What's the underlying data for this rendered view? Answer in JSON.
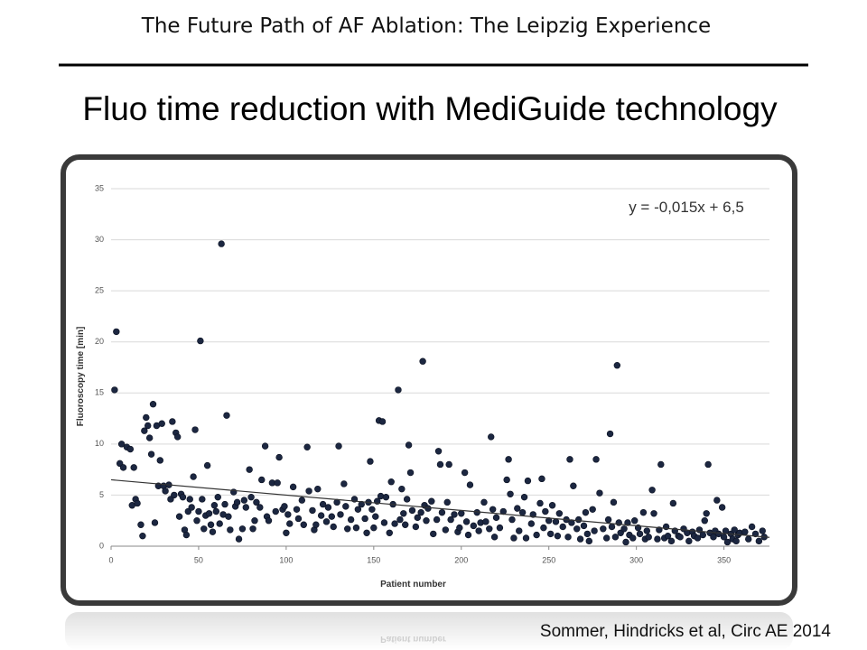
{
  "header": {
    "title": "The Future Path of AF Ablation: The Leipzig Experience"
  },
  "slide": {
    "heading": "Fluo time reduction with MediGuide technology",
    "citation": "Sommer, Hindricks et al, Circ AE 2014"
  },
  "chart_data": {
    "type": "scatter",
    "xlabel": "Patient number",
    "ylabel": "Fluoroscopy time [min]",
    "annotation": "y = -0,015x + 6,5",
    "color": "#1c2741",
    "grid": true,
    "trendline": {
      "slope": -0.015,
      "intercept": 6.5,
      "color": "#333333"
    },
    "xlim": [
      0,
      376
    ],
    "ylim": [
      0,
      35
    ],
    "xticks": [
      0,
      50,
      100,
      150,
      200,
      250,
      300,
      350
    ],
    "yticks": [
      0,
      5,
      10,
      15,
      20,
      25,
      30,
      35
    ],
    "x": [
      2,
      3,
      5,
      6,
      7,
      9,
      11,
      12,
      13,
      14,
      15,
      17,
      18,
      19,
      20,
      21,
      22,
      23,
      24,
      25,
      26,
      27,
      28,
      29,
      30,
      31,
      33,
      34,
      35,
      36,
      37,
      38,
      39,
      40,
      41,
      42,
      43,
      44,
      45,
      46,
      47,
      48,
      49,
      50,
      51,
      52,
      53,
      54,
      55,
      56,
      57,
      58,
      59,
      60,
      61,
      62,
      63,
      64,
      65,
      66,
      67,
      68,
      70,
      71,
      72,
      73,
      75,
      76,
      77,
      79,
      80,
      81,
      82,
      83,
      85,
      86,
      88,
      89,
      90,
      92,
      94,
      95,
      96,
      98,
      99,
      100,
      101,
      102,
      104,
      106,
      107,
      109,
      110,
      112,
      113,
      115,
      116,
      117,
      118,
      120,
      121,
      123,
      124,
      126,
      127,
      129,
      130,
      131,
      133,
      134,
      135,
      137,
      139,
      140,
      141,
      143,
      145,
      146,
      147,
      148,
      149,
      150,
      151,
      152,
      153,
      154,
      155,
      156,
      157,
      159,
      160,
      161,
      162,
      164,
      165,
      166,
      167,
      168,
      169,
      170,
      171,
      172,
      174,
      175,
      177,
      178,
      179,
      180,
      181,
      183,
      184,
      186,
      187,
      188,
      189,
      191,
      192,
      193,
      194,
      196,
      198,
      199,
      200,
      202,
      203,
      204,
      205,
      207,
      209,
      210,
      211,
      213,
      214,
      216,
      217,
      218,
      219,
      220,
      222,
      224,
      226,
      227,
      228,
      229,
      230,
      232,
      233,
      235,
      236,
      237,
      238,
      240,
      241,
      243,
      245,
      246,
      247,
      248,
      250,
      251,
      252,
      254,
      255,
      256,
      258,
      260,
      261,
      262,
      263,
      264,
      266,
      267,
      268,
      270,
      271,
      272,
      273,
      275,
      276,
      277,
      285,
      279,
      289,
      281,
      283,
      284,
      286,
      287,
      288,
      290,
      291,
      293,
      294,
      295,
      296,
      298,
      299,
      301,
      302,
      304,
      305,
      306,
      307,
      309,
      310,
      312,
      313,
      314,
      316,
      317,
      318,
      320,
      321,
      322,
      324,
      325,
      327,
      329,
      330,
      332,
      333,
      335,
      336,
      338,
      339,
      340,
      341,
      342,
      344,
      345,
      346,
      347,
      349,
      350,
      351,
      352,
      354,
      355,
      356,
      357,
      358,
      359,
      362,
      364,
      366,
      368,
      370,
      372,
      373
    ],
    "values": [
      15.3,
      21,
      8.1,
      10,
      7.7,
      9.7,
      9.5,
      4,
      7.7,
      4.6,
      4.2,
      2.1,
      1,
      11.3,
      12.6,
      11.8,
      10.6,
      9,
      13.9,
      2.3,
      11.8,
      5.9,
      8.4,
      12,
      5.9,
      5.4,
      6,
      4.6,
      12.2,
      5,
      11.1,
      10.7,
      2.9,
      5.1,
      4.8,
      1.6,
      1.1,
      3.4,
      4.6,
      3.8,
      6.8,
      11.4,
      2.5,
      3.4,
      20.1,
      4.6,
      1.7,
      3,
      7.9,
      3.2,
      2.1,
      1.4,
      4,
      3.4,
      4.8,
      2.2,
      29.6,
      3.1,
      4.1,
      12.8,
      2.9,
      1.6,
      5.3,
      3.9,
      4.3,
      0.7,
      1.7,
      4.5,
      3.8,
      7.5,
      4.8,
      1.7,
      2.5,
      4.3,
      3.8,
      6.5,
      9.8,
      2.9,
      2.5,
      6.2,
      3.4,
      6.2,
      8.7,
      3.6,
      3.9,
      1.3,
      3.1,
      2.2,
      5.8,
      3.6,
      2.7,
      4.5,
      2.1,
      9.7,
      5.4,
      3.5,
      1.6,
      2.1,
      5.6,
      3,
      4.1,
      2.4,
      3.8,
      2.9,
      1.9,
      4.3,
      9.8,
      3.1,
      6.1,
      3.9,
      1.7,
      2.6,
      4.6,
      1.8,
      3.6,
      4.1,
      2.7,
      1.3,
      4.3,
      8.3,
      3.6,
      1.8,
      2.9,
      4.4,
      12.3,
      4.9,
      12.2,
      2.3,
      4.8,
      1.3,
      6.3,
      4.1,
      2.2,
      15.3,
      2.6,
      5.6,
      3.2,
      2.1,
      4.6,
      9.9,
      7.2,
      3.5,
      1.9,
      2.8,
      3.3,
      18.1,
      4,
      2.5,
      3.7,
      4.4,
      1.2,
      2.6,
      9.3,
      8,
      3.3,
      1.6,
      4.3,
      8,
      2.6,
      3.1,
      1.4,
      1.8,
      3.2,
      7.2,
      2.4,
      1.1,
      6,
      2,
      3.3,
      1.5,
      2.3,
      4.3,
      2.4,
      1.7,
      10.7,
      3.6,
      0.9,
      2.8,
      1.8,
      3.4,
      6.5,
      8.5,
      5.1,
      2.6,
      0.8,
      3.7,
      1.5,
      3.3,
      4.8,
      0.8,
      6.4,
      2.2,
      3.1,
      1.1,
      4.2,
      6.6,
      1.8,
      3.4,
      2.5,
      1.2,
      4,
      2.4,
      1,
      3.2,
      1.9,
      2.6,
      0.9,
      8.5,
      2.3,
      5.9,
      1.7,
      2.6,
      0.7,
      2,
      3.3,
      1.2,
      0.5,
      3.6,
      1.5,
      8.5,
      11,
      5.2,
      17.7,
      1.7,
      0.8,
      2.6,
      1.9,
      4.3,
      0.9,
      2.3,
      1.3,
      1.7,
      0.4,
      2.3,
      1.1,
      0.8,
      2.5,
      1.8,
      1.2,
      3.3,
      0.7,
      1.5,
      0.9,
      5.5,
      3.2,
      0.7,
      1.6,
      8,
      0.8,
      1.9,
      1,
      0.5,
      4.2,
      1.5,
      1,
      0.9,
      1.7,
      1.3,
      0.5,
      1.4,
      1,
      0.8,
      1.6,
      1.1,
      2.5,
      3.2,
      8,
      1.3,
      0.9,
      1.5,
      4.5,
      1.2,
      3.8,
      0.9,
      1.5,
      0.4,
      1.2,
      0.7,
      1.6,
      0.5,
      1.1,
      1.3,
      1.4,
      0.7,
      1.9,
      1.2,
      0.5,
      1.5,
      0.9
    ]
  }
}
